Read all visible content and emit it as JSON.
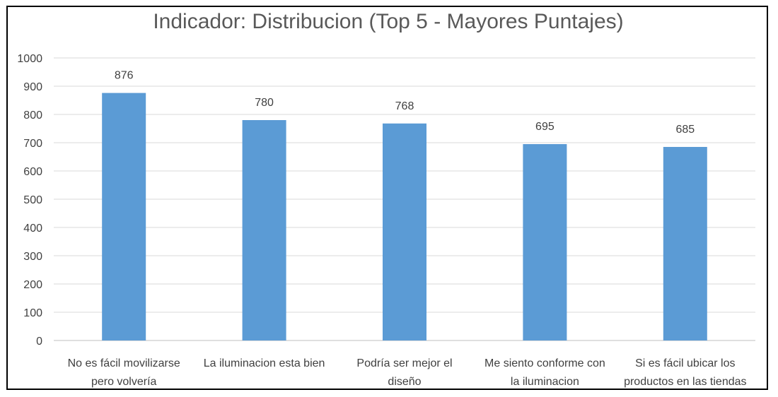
{
  "chart_data": {
    "type": "bar",
    "title": "Indicador: Distribucion (Top 5 - Mayores Puntajes)",
    "categories": [
      [
        "No es fácil movilizarse",
        "pero volvería"
      ],
      [
        "La iluminacion esta bien"
      ],
      [
        "Podría ser mejor el",
        "diseño"
      ],
      [
        "Me siento conforme con",
        "la iluminacion"
      ],
      [
        "Si es fácil ubicar los",
        "productos en las tiendas"
      ]
    ],
    "values": [
      876,
      780,
      768,
      695,
      685
    ],
    "data_labels": [
      "876",
      "780",
      "768",
      "695",
      "685"
    ],
    "ylim": [
      0,
      1000
    ],
    "yticks": [
      "0",
      "100",
      "200",
      "300",
      "400",
      "500",
      "600",
      "700",
      "800",
      "900",
      "1000"
    ],
    "grid": true,
    "legend": "none",
    "bar_color": "#5b9bd5",
    "xlabel": "",
    "ylabel": ""
  }
}
